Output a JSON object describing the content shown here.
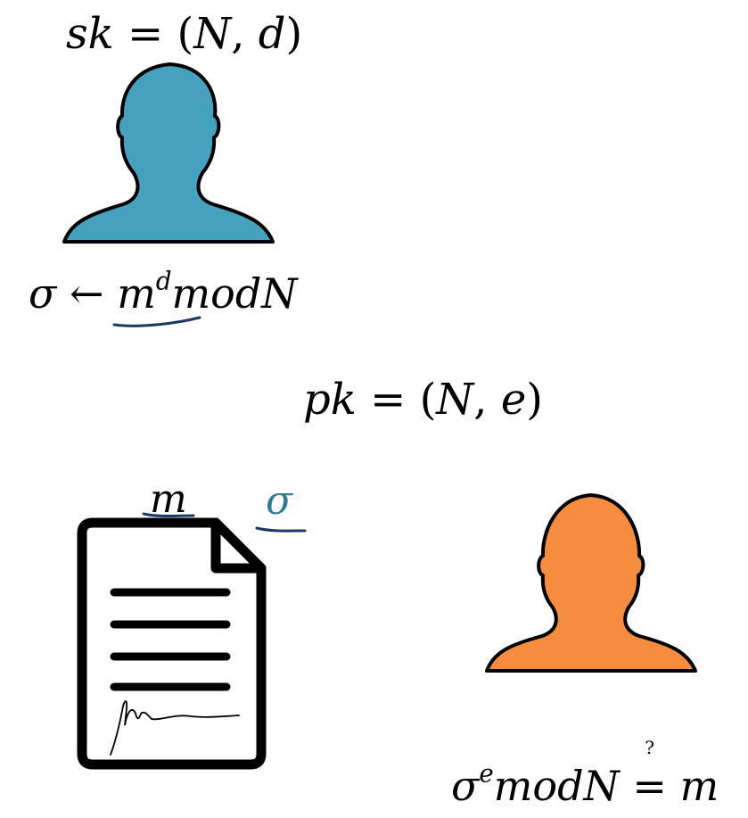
{
  "colors": {
    "signer": "#46A1BE",
    "verifier": "#F68D3E",
    "annotation_ink": "#1D3763",
    "sigma_label": "#2E7B95",
    "outline": "#000000"
  },
  "icons": {
    "signer": "person-silhouette-icon",
    "verifier": "person-silhouette-icon",
    "document": "signed-document-icon"
  },
  "signer": {
    "secret_key": {
      "lhs": "sk",
      "eq": "=",
      "open": "(",
      "N": "N",
      "comma": ",",
      "d": "d",
      "close": ")"
    },
    "sign_eq": {
      "sigma": "σ",
      "arrow": "←",
      "base": "m",
      "exp": "d",
      "rest": "modN"
    }
  },
  "public_key": {
    "lhs": "pk",
    "eq": "=",
    "open": "(",
    "N": "N",
    "comma": ",",
    "e": "e",
    "close": ")"
  },
  "document": {
    "message_label": "m",
    "signature_label": "σ"
  },
  "verifier": {
    "verify_eq": {
      "sigma": "σ",
      "exp": "e",
      "mid": "modN",
      "eq": "=",
      "q": "?",
      "m": "m"
    }
  }
}
